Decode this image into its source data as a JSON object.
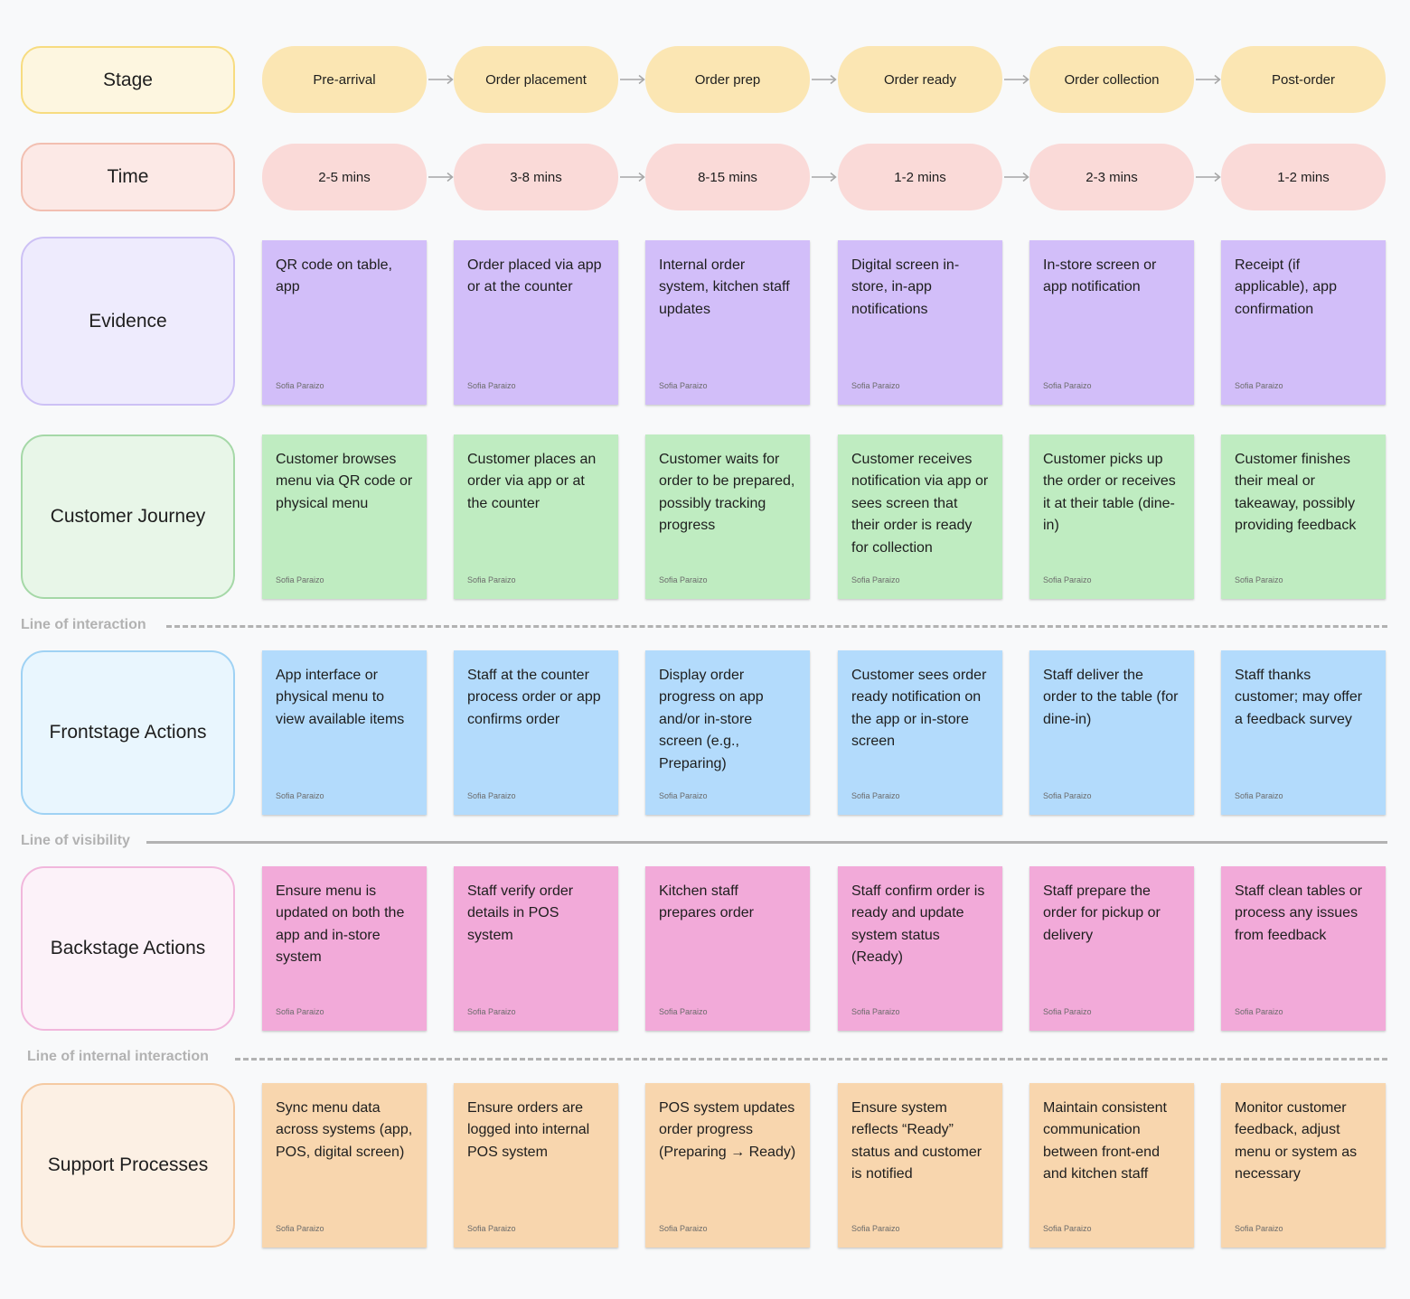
{
  "colors": {
    "stage_pill": "#fbe6b3",
    "time_pill": "#fadad8",
    "evidence_note": "#d2bef9",
    "journey_note": "#bfecc1",
    "frontstage_note": "#b3dbfc",
    "backstage_note": "#f2aad9",
    "support_note": "#f8d6ae",
    "line_dash": "#b2b2b2"
  },
  "author": "Sofia Paraizo",
  "rows": {
    "stage": {
      "label": "Stage",
      "bg": "#fdf6e0",
      "border": "#f7dc80"
    },
    "time": {
      "label": "Time",
      "bg": "#fce9e6",
      "border": "#f2bfb1"
    },
    "evidence": {
      "label": "Evidence",
      "bg": "#eeebfd",
      "border": "#cdc1f5"
    },
    "journey": {
      "label": "Customer Journey",
      "bg": "#e8f6e8",
      "border": "#a5d8a7"
    },
    "frontstage": {
      "label": "Frontstage Actions",
      "bg": "#e9f6fe",
      "border": "#9fd2f4"
    },
    "backstage": {
      "label": "Backstage Actions",
      "bg": "#fcf2f9",
      "border": "#f1b7dc"
    },
    "support": {
      "label": "Support Processes",
      "bg": "#fcf0e4",
      "border": "#f5caa2"
    }
  },
  "stages": [
    "Pre-arrival",
    "Order placement",
    "Order prep",
    "Order ready",
    "Order collection",
    "Post-order"
  ],
  "times": [
    "2-5 mins",
    "3-8 mins",
    "8-15 mins",
    "1-2 mins",
    "2-3 mins",
    "1-2 mins"
  ],
  "evidence": [
    "QR code on table, app",
    "Order placed via app or at the counter",
    "Internal order system, kitchen staff updates",
    "Digital screen in-store, in-app notifications",
    "In-store screen or app notification",
    "Receipt (if applicable), app confirmation"
  ],
  "journey": [
    "Customer browses menu via QR code or physical menu",
    "Customer places an order via app or at the counter",
    "Customer waits for order to be prepared, possibly tracking progress",
    "Customer receives notification via app or sees screen that their order is ready for collection",
    "Customer picks up the order or receives it at their table (dine-in)",
    "Customer finishes their meal or takeaway, possibly providing feedback"
  ],
  "frontstage": [
    "App interface or physical menu to view available items",
    "Staff at the counter process order or app confirms order",
    "Display order progress on app and/or in-store screen (e.g., Preparing)",
    "Customer sees order ready notification on the app or in-store screen",
    "Staff deliver the order to the table (for dine-in)",
    "Staff thanks customer; may offer a feedback survey"
  ],
  "backstage": [
    "Ensure menu is updated on both the app and in-store system",
    "Staff verify order details in POS system",
    "Kitchen staff prepares order",
    "Staff confirm order is ready and update system status (Ready)",
    "Staff prepare the order for pickup or delivery",
    "Staff clean tables or process any issues from feedback"
  ],
  "support": [
    "Sync menu data across systems (app, POS, digital screen)",
    "Ensure orders are logged into internal POS system",
    "POS system updates order progress (Preparing → Ready)",
    "Ensure system reflects “Ready” status and customer is notified",
    "Maintain consistent communication between front-end and kitchen staff",
    "Monitor customer feedback, adjust menu or system as necessary"
  ],
  "lines": {
    "interaction": "Line of interaction",
    "visibility": "Line of visibility",
    "internal": "Line of internal interaction"
  }
}
